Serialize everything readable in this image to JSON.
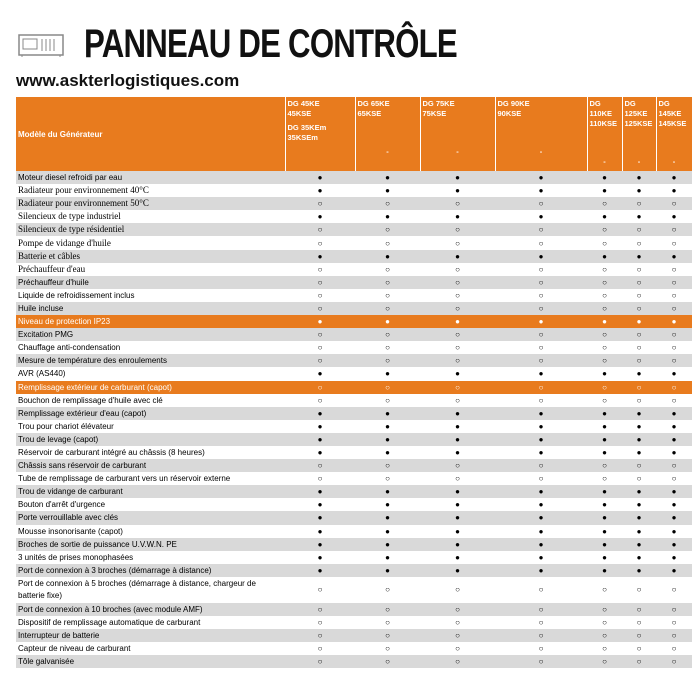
{
  "header": {
    "title": "PANNEAU DE CONTRÔLE",
    "website": "www.askterlogistiques.com"
  },
  "table": {
    "corner": "Modèle du Générateur",
    "columns": [
      [
        "DG 45KE",
        "45KSE",
        "DG 35KEm",
        "35KSEm"
      ],
      [
        "DG 65KE",
        "65KSE",
        "-"
      ],
      [
        "DG 75KE",
        "75KSE",
        "-"
      ],
      [
        "DG 90KE",
        "90KSE",
        "-"
      ],
      [
        "DG",
        "110KE",
        "110KSE",
        "-"
      ],
      [
        "DG",
        "125KE",
        "125KSE",
        "-"
      ],
      [
        "DG",
        "145KE",
        "145KSE",
        "-"
      ]
    ],
    "rows": [
      {
        "label": "Moteur diesel refroidi par eau",
        "cells": [
          "●",
          "●",
          "●",
          "●",
          "●",
          "●",
          "●"
        ]
      },
      {
        "label": "Radiateur pour environnement 40°C",
        "cells": [
          "●",
          "●",
          "●",
          "●",
          "●",
          "●",
          "●"
        ],
        "serif": true
      },
      {
        "label": "Radiateur pour environnement 50°C",
        "cells": [
          "○",
          "○",
          "○",
          "○",
          "○",
          "○",
          "○"
        ],
        "serif": true
      },
      {
        "label": "Silencieux de type industriel",
        "cells": [
          "●",
          "●",
          "●",
          "●",
          "●",
          "●",
          "●"
        ],
        "serif": true
      },
      {
        "label": "Silencieux de type résidentiel",
        "cells": [
          "○",
          "○",
          "○",
          "○",
          "○",
          "○",
          "○"
        ],
        "serif": true
      },
      {
        "label": "Pompe de vidange d'huile",
        "cells": [
          "○",
          "○",
          "○",
          "○",
          "○",
          "○",
          "○"
        ],
        "serif": true
      },
      {
        "label": "Batterie et câbles",
        "cells": [
          "●",
          "●",
          "●",
          "●",
          "●",
          "●",
          "●"
        ],
        "serif": true
      },
      {
        "label": "Préchauffeur d'eau",
        "cells": [
          "○",
          "○",
          "○",
          "○",
          "○",
          "○",
          "○"
        ],
        "serif": true
      },
      {
        "label": "Préchauffeur d'huile",
        "cells": [
          "○",
          "○",
          "○",
          "○",
          "○",
          "○",
          "○"
        ]
      },
      {
        "label": "Liquide de refroidissement inclus",
        "cells": [
          "○",
          "○",
          "○",
          "○",
          "○",
          "○",
          "○"
        ]
      },
      {
        "label": "Huile incluse",
        "cells": [
          "○",
          "○",
          "○",
          "○",
          "○",
          "○",
          "○"
        ]
      },
      {
        "label": "Niveau de protection IP23",
        "cells": [
          "●",
          "●",
          "●",
          "●",
          "●",
          "●",
          "●"
        ],
        "highlight": true
      },
      {
        "label": "Excitation PMG",
        "cells": [
          "○",
          "○",
          "○",
          "○",
          "○",
          "○",
          "○"
        ]
      },
      {
        "label": "Chauffage anti-condensation",
        "cells": [
          "○",
          "○",
          "○",
          "○",
          "○",
          "○",
          "○"
        ]
      },
      {
        "label": "Mesure de température des enroulements",
        "cells": [
          "○",
          "○",
          "○",
          "○",
          "○",
          "○",
          "○"
        ]
      },
      {
        "label": "AVR (AS440)",
        "cells": [
          "●",
          "●",
          "●",
          "●",
          "●",
          "●",
          "●"
        ]
      },
      {
        "label": "Remplissage extérieur de carburant (capot)",
        "cells": [
          "○",
          "○",
          "○",
          "○",
          "○",
          "○",
          "○"
        ],
        "highlight": true
      },
      {
        "label": "Bouchon de remplissage d'huile avec clé",
        "cells": [
          "○",
          "○",
          "○",
          "○",
          "○",
          "○",
          "○"
        ]
      },
      {
        "label": "Remplissage extérieur d'eau (capot)",
        "cells": [
          "●",
          "●",
          "●",
          "●",
          "●",
          "●",
          "●"
        ]
      },
      {
        "label": "Trou pour chariot élévateur",
        "cells": [
          "●",
          "●",
          "●",
          "●",
          "●",
          "●",
          "●"
        ]
      },
      {
        "label": "Trou de levage (capot)",
        "cells": [
          "●",
          "●",
          "●",
          "●",
          "●",
          "●",
          "●"
        ]
      },
      {
        "label": "Réservoir de carburant intégré au châssis (8 heures)",
        "cells": [
          "●",
          "●",
          "●",
          "●",
          "●",
          "●",
          "●"
        ]
      },
      {
        "label": "Châssis sans réservoir de carburant",
        "cells": [
          "○",
          "○",
          "○",
          "○",
          "○",
          "○",
          "○"
        ]
      },
      {
        "label": "Tube de remplissage de carburant vers un réservoir externe",
        "cells": [
          "○",
          "○",
          "○",
          "○",
          "○",
          "○",
          "○"
        ]
      },
      {
        "label": "Trou de vidange de carburant",
        "cells": [
          "●",
          "●",
          "●",
          "●",
          "●",
          "●",
          "●"
        ]
      },
      {
        "label": "Bouton d'arrêt d'urgence",
        "cells": [
          "●",
          "●",
          "●",
          "●",
          "●",
          "●",
          "●"
        ]
      },
      {
        "label": "Porte verrouillable avec clés",
        "cells": [
          "●",
          "●",
          "●",
          "●",
          "●",
          "●",
          "●"
        ]
      },
      {
        "label": "Mousse insonorisante (capot)",
        "cells": [
          "●",
          "●",
          "●",
          "●",
          "●",
          "●",
          "●"
        ]
      },
      {
        "label": "Broches de sortie de puissance U.V.W.N. PE",
        "cells": [
          "●",
          "●",
          "●",
          "●",
          "●",
          "●",
          "●"
        ]
      },
      {
        "label": "3 unités de prises monophasées",
        "cells": [
          "●",
          "●",
          "●",
          "●",
          "●",
          "●",
          "●"
        ]
      },
      {
        "label": "Port de connexion à 3 broches (démarrage à distance)",
        "cells": [
          "●",
          "●",
          "●",
          "●",
          "●",
          "●",
          "●"
        ]
      },
      {
        "label": "Port de connexion à 5 broches (démarrage à distance, chargeur de batterie fixe)",
        "cells": [
          "○",
          "○",
          "○",
          "○",
          "○",
          "○",
          "○"
        ]
      },
      {
        "label": "Port de connexion à 10 broches (avec module AMF)",
        "cells": [
          "○",
          "○",
          "○",
          "○",
          "○",
          "○",
          "○"
        ]
      },
      {
        "label": "Dispositif de remplissage automatique de carburant",
        "cells": [
          "○",
          "○",
          "○",
          "○",
          "○",
          "○",
          "○"
        ]
      },
      {
        "label": "Interrupteur de batterie",
        "cells": [
          "○",
          "○",
          "○",
          "○",
          "○",
          "○",
          "○"
        ]
      },
      {
        "label": "Capteur de niveau de carburant",
        "cells": [
          "○",
          "○",
          "○",
          "○",
          "○",
          "○",
          "○"
        ]
      },
      {
        "label": "Tôle galvanisée",
        "cells": [
          "○",
          "○",
          "○",
          "○",
          "○",
          "○",
          "○"
        ]
      }
    ]
  }
}
